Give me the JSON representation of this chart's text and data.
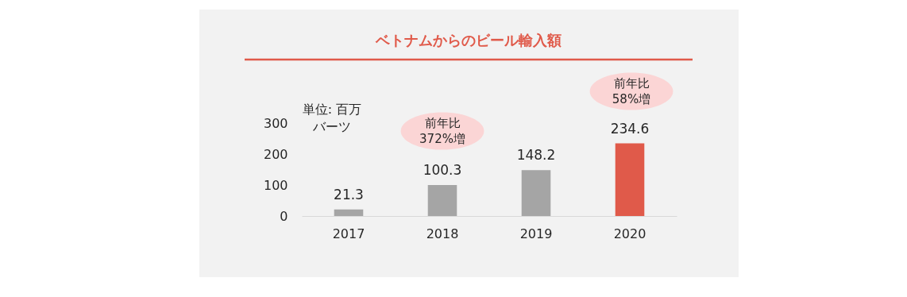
{
  "chart_data": {
    "type": "bar",
    "title": "ベトナムからのビール輸入額",
    "ylabel": "単位: 百万バーツ",
    "categories": [
      "2017",
      "2018",
      "2019",
      "2020"
    ],
    "values": [
      21.3,
      100.3,
      148.2,
      234.6
    ],
    "colors": [
      "#a5a5a5",
      "#a5a5a5",
      "#a5a5a5",
      "#e05a4a"
    ],
    "ylim": [
      0,
      300
    ],
    "yticks": [
      0,
      100,
      200,
      300
    ],
    "grid": false,
    "data_labels": true,
    "annotations": [
      "前年比372%増",
      "前年比58%増"
    ]
  }
}
